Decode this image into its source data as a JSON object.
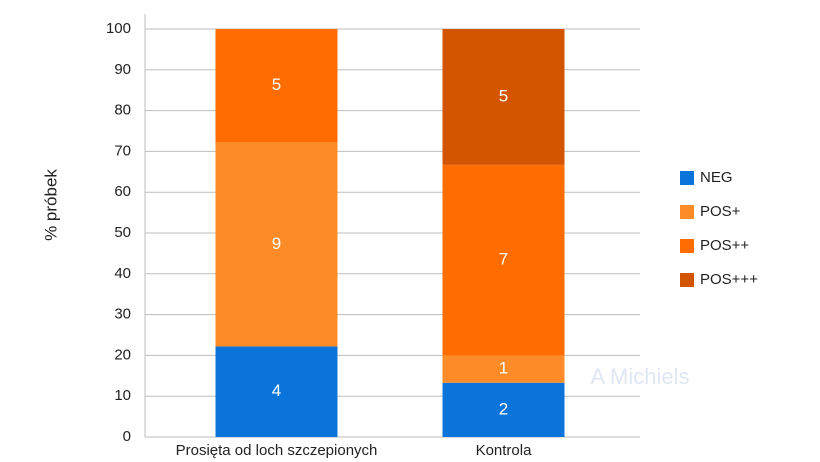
{
  "chart_data": {
    "type": "stacked_bar",
    "y_label": "% próbek",
    "watermark": "A Michiels",
    "categories": [
      "Prosięta od loch szczepionych",
      "Kontrola"
    ],
    "series": [
      {
        "name": "NEG",
        "color": "#0a74da",
        "values": [
          22.2,
          13.3
        ],
        "counts": [
          4,
          2
        ]
      },
      {
        "name": "POS+",
        "color": "#fd8b27",
        "values": [
          50,
          6.7
        ],
        "counts": [
          9,
          1
        ]
      },
      {
        "name": "POS++",
        "color": "#ff6d00",
        "values": [
          27.8,
          46.7
        ],
        "counts": [
          5,
          7
        ]
      },
      {
        "name": "POS+++",
        "color": "#d45500",
        "values": [
          0,
          33.3
        ],
        "counts": [
          null,
          5
        ]
      }
    ],
    "ylim": [
      0,
      100
    ],
    "yticks": [
      0,
      10,
      20,
      30,
      40,
      50,
      60,
      70,
      80,
      90,
      100
    ],
    "grid": true,
    "legend": "right"
  }
}
